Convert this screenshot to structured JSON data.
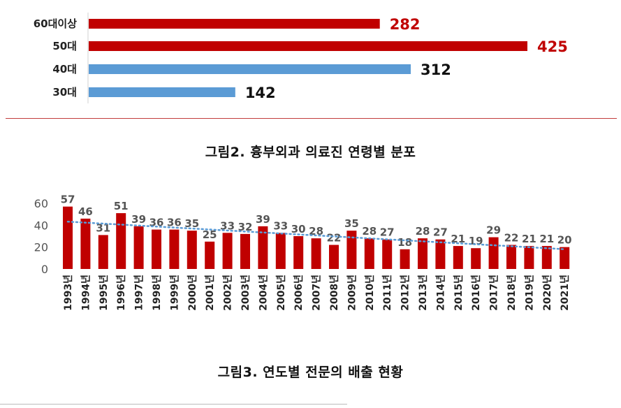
{
  "figure2": {
    "caption": "그림2. 흉부외과 의료진 연령별 분포",
    "chart_data": {
      "type": "bar",
      "orientation": "horizontal",
      "categories": [
        "60대이상",
        "50대",
        "40대",
        "30대"
      ],
      "values": [
        282,
        425,
        312,
        142
      ],
      "highlight": [
        true,
        true,
        false,
        false
      ],
      "xlim": [
        0,
        425
      ],
      "colors": {
        "highlight": "#c00000",
        "normal": "#5b9bd5",
        "highlight_label": "#c00000",
        "normal_label": "#111111"
      }
    }
  },
  "figure3": {
    "caption": "그림3. 연도별 전문의 배출 현황",
    "chart_data": {
      "type": "bar",
      "categories": [
        "1993년",
        "1994년",
        "1995년",
        "1996년",
        "1997년",
        "1998년",
        "1999년",
        "2000년",
        "2001년",
        "2002년",
        "2003년",
        "2004년",
        "2005년",
        "2006년",
        "2007년",
        "2008년",
        "2009년",
        "2010년",
        "2011년",
        "2012년",
        "2013년",
        "2014년",
        "2015년",
        "2016년",
        "2017년",
        "2018년",
        "2019년",
        "2020년",
        "2021년"
      ],
      "values": [
        57,
        46,
        31,
        51,
        39,
        36,
        36,
        35,
        25,
        33,
        32,
        39,
        33,
        30,
        28,
        22,
        35,
        28,
        27,
        18,
        28,
        27,
        21,
        19,
        29,
        22,
        21,
        21,
        20
      ],
      "yticks": [
        0,
        20,
        40,
        60
      ],
      "ylim": [
        0,
        60
      ],
      "trendline": {
        "type": "linear",
        "style": "dotted",
        "color": "#5b9bd5"
      },
      "colors": {
        "bar": "#c00000"
      }
    }
  }
}
